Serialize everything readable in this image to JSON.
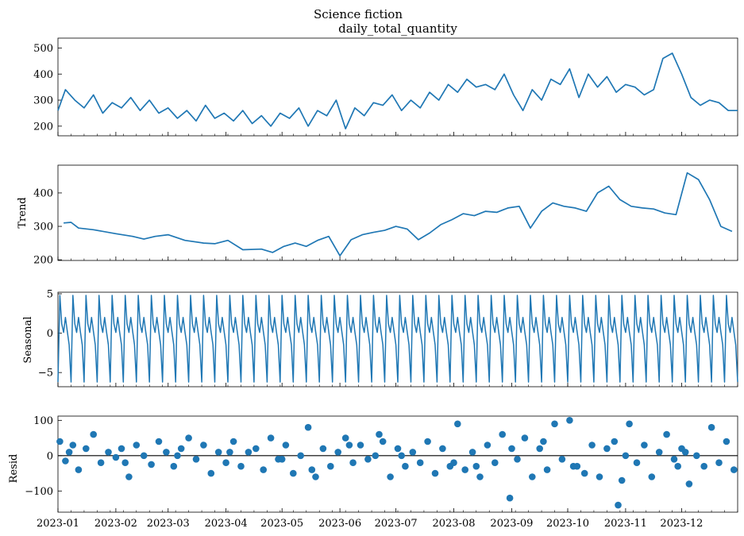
{
  "figure": {
    "suptitle": "Science fiction"
  },
  "chart_data": [
    {
      "type": "line",
      "title": "daily_total_quantity",
      "ylabel": "",
      "x_range": [
        "2023-01-01",
        "2023-12-31"
      ],
      "ylim": [
        163,
        538
      ],
      "yticks": [
        200,
        300,
        400,
        500
      ],
      "color": "#1f77b4",
      "series": [
        {
          "x": [
            "2023-01-01",
            "2023-01-05",
            "2023-01-10",
            "2023-01-15",
            "2023-01-20",
            "2023-01-25",
            "2023-01-30",
            "2023-02-04",
            "2023-02-09",
            "2023-02-14",
            "2023-02-19",
            "2023-02-24",
            "2023-03-01",
            "2023-03-06",
            "2023-03-11",
            "2023-03-16",
            "2023-03-21",
            "2023-03-26",
            "2023-03-31",
            "2023-04-05",
            "2023-04-10",
            "2023-04-15",
            "2023-04-20",
            "2023-04-25",
            "2023-04-30",
            "2023-05-05",
            "2023-05-10",
            "2023-05-15",
            "2023-05-20",
            "2023-05-25",
            "2023-05-30",
            "2023-06-04",
            "2023-06-09",
            "2023-06-14",
            "2023-06-19",
            "2023-06-24",
            "2023-06-29",
            "2023-07-04",
            "2023-07-09",
            "2023-07-14",
            "2023-07-19",
            "2023-07-24",
            "2023-07-29",
            "2023-08-03",
            "2023-08-08",
            "2023-08-13",
            "2023-08-18",
            "2023-08-23",
            "2023-08-28",
            "2023-09-02",
            "2023-09-07",
            "2023-09-12",
            "2023-09-17",
            "2023-09-22",
            "2023-09-27",
            "2023-10-02",
            "2023-10-07",
            "2023-10-12",
            "2023-10-17",
            "2023-10-22",
            "2023-10-27",
            "2023-11-01",
            "2023-11-06",
            "2023-11-11",
            "2023-11-16",
            "2023-11-21",
            "2023-11-26",
            "2023-12-01",
            "2023-12-06",
            "2023-12-11",
            "2023-12-16",
            "2023-12-21",
            "2023-12-26",
            "2023-12-31"
          ],
          "y": [
            260,
            340,
            300,
            270,
            320,
            250,
            290,
            270,
            310,
            260,
            300,
            250,
            270,
            230,
            260,
            220,
            280,
            230,
            250,
            220,
            260,
            210,
            240,
            200,
            250,
            230,
            270,
            200,
            260,
            240,
            300,
            190,
            270,
            240,
            290,
            280,
            320,
            260,
            300,
            270,
            330,
            300,
            360,
            330,
            380,
            350,
            360,
            340,
            400,
            320,
            260,
            340,
            300,
            380,
            360,
            420,
            310,
            400,
            350,
            390,
            330,
            360,
            350,
            320,
            340,
            460,
            480,
            400,
            310,
            280,
            300,
            290,
            260,
            260
          ]
        }
      ]
    },
    {
      "type": "line",
      "title": "",
      "ylabel": "Trend",
      "x_range": [
        "2023-01-01",
        "2023-12-31"
      ],
      "ylim": [
        198,
        483
      ],
      "yticks": [
        200,
        300,
        400
      ],
      "color": "#1f77b4",
      "series": [
        {
          "x": [
            "2023-01-04",
            "2023-01-08",
            "2023-01-12",
            "2023-01-20",
            "2023-02-01",
            "2023-02-10",
            "2023-02-16",
            "2023-02-22",
            "2023-03-01",
            "2023-03-10",
            "2023-03-20",
            "2023-03-26",
            "2023-04-02",
            "2023-04-10",
            "2023-04-20",
            "2023-04-26",
            "2023-05-02",
            "2023-05-08",
            "2023-05-14",
            "2023-05-20",
            "2023-05-26",
            "2023-06-01",
            "2023-06-07",
            "2023-06-13",
            "2023-06-19",
            "2023-06-25",
            "2023-07-01",
            "2023-07-07",
            "2023-07-13",
            "2023-07-19",
            "2023-07-25",
            "2023-07-31",
            "2023-08-06",
            "2023-08-12",
            "2023-08-18",
            "2023-08-24",
            "2023-08-30",
            "2023-09-05",
            "2023-09-11",
            "2023-09-17",
            "2023-09-23",
            "2023-09-29",
            "2023-10-05",
            "2023-10-11",
            "2023-10-17",
            "2023-10-23",
            "2023-10-29",
            "2023-11-04",
            "2023-11-10",
            "2023-11-16",
            "2023-11-22",
            "2023-11-28",
            "2023-12-04",
            "2023-12-10",
            "2023-12-16",
            "2023-12-22",
            "2023-12-28"
          ],
          "y": [
            310,
            312,
            295,
            290,
            278,
            270,
            262,
            270,
            275,
            258,
            250,
            248,
            258,
            230,
            232,
            222,
            240,
            250,
            240,
            258,
            270,
            212,
            260,
            275,
            282,
            288,
            300,
            292,
            260,
            280,
            305,
            320,
            338,
            332,
            345,
            342,
            355,
            360,
            295,
            345,
            370,
            360,
            355,
            345,
            400,
            420,
            380,
            360,
            355,
            352,
            340,
            335,
            460,
            440,
            380,
            300,
            285
          ]
        }
      ]
    },
    {
      "type": "line",
      "title": "",
      "ylabel": "Seasonal",
      "x_range": [
        "2023-01-01",
        "2023-12-31"
      ],
      "ylim": [
        -6.8,
        5.2
      ],
      "yticks": [
        -5,
        0,
        5
      ],
      "color": "#1f77b4",
      "period_days": 7,
      "pattern": [
        -6.2,
        4.8,
        1.2,
        0.1,
        2.0,
        0.2,
        -1.5
      ],
      "series": []
    },
    {
      "type": "scatter",
      "title": "",
      "ylabel": "Resid",
      "x_range": [
        "2023-01-01",
        "2023-12-31"
      ],
      "ylim": [
        -160,
        112
      ],
      "yticks": [
        -100,
        0,
        100
      ],
      "color": "#1f77b4",
      "zero_line": true,
      "series": [
        {
          "x": [
            "2023-01-02",
            "2023-01-05",
            "2023-01-09",
            "2023-01-12",
            "2023-01-16",
            "2023-01-20",
            "2023-01-24",
            "2023-01-28",
            "2023-02-01",
            "2023-02-04",
            "2023-02-08",
            "2023-02-12",
            "2023-02-16",
            "2023-02-20",
            "2023-02-24",
            "2023-02-28",
            "2023-03-04",
            "2023-03-08",
            "2023-03-12",
            "2023-03-16",
            "2023-03-20",
            "2023-03-24",
            "2023-03-28",
            "2023-04-01",
            "2023-04-05",
            "2023-04-09",
            "2023-04-13",
            "2023-04-17",
            "2023-04-21",
            "2023-04-25",
            "2023-04-29",
            "2023-05-03",
            "2023-05-07",
            "2023-05-11",
            "2023-05-15",
            "2023-05-19",
            "2023-05-23",
            "2023-05-27",
            "2023-05-31",
            "2023-06-04",
            "2023-06-08",
            "2023-06-12",
            "2023-06-16",
            "2023-06-20",
            "2023-06-24",
            "2023-06-28",
            "2023-07-02",
            "2023-07-06",
            "2023-07-10",
            "2023-07-14",
            "2023-07-18",
            "2023-07-22",
            "2023-07-26",
            "2023-07-30",
            "2023-08-03",
            "2023-08-07",
            "2023-08-11",
            "2023-08-15",
            "2023-08-19",
            "2023-08-23",
            "2023-08-27",
            "2023-08-31",
            "2023-09-04",
            "2023-09-08",
            "2023-09-12",
            "2023-09-16",
            "2023-09-20",
            "2023-09-24",
            "2023-09-28",
            "2023-10-02",
            "2023-10-06",
            "2023-10-10",
            "2023-10-14",
            "2023-10-18",
            "2023-10-22",
            "2023-10-26",
            "2023-10-30",
            "2023-11-03",
            "2023-11-07",
            "2023-11-11",
            "2023-11-15",
            "2023-11-19",
            "2023-11-23",
            "2023-11-27",
            "2023-12-01",
            "2023-12-05",
            "2023-12-09",
            "2023-12-13",
            "2023-12-17",
            "2023-12-21",
            "2023-12-25",
            "2023-12-29",
            "2023-01-07",
            "2023-02-06",
            "2023-03-06",
            "2023-04-03",
            "2023-05-01",
            "2023-06-06",
            "2023-07-04",
            "2023-08-01",
            "2023-09-01",
            "2023-10-04",
            "2023-11-01",
            "2023-12-03",
            "2023-05-17",
            "2023-06-22",
            "2023-08-13",
            "2023-09-18",
            "2023-10-28",
            "2023-11-29"
          ],
          "y": [
            40,
            -15,
            30,
            -40,
            20,
            60,
            -20,
            10,
            -5,
            20,
            -60,
            30,
            0,
            -25,
            40,
            10,
            -30,
            20,
            50,
            -10,
            30,
            -50,
            10,
            -20,
            40,
            -30,
            10,
            20,
            -40,
            50,
            -10,
            30,
            -50,
            0,
            80,
            -60,
            20,
            -30,
            10,
            50,
            -20,
            30,
            -10,
            0,
            40,
            -60,
            20,
            -30,
            10,
            -20,
            40,
            -50,
            20,
            -30,
            90,
            -40,
            10,
            -60,
            30,
            -20,
            60,
            -120,
            -10,
            50,
            -60,
            20,
            -40,
            90,
            -10,
            100,
            -30,
            -50,
            30,
            -60,
            20,
            40,
            -70,
            90,
            -20,
            30,
            -60,
            10,
            60,
            -10,
            20,
            -80,
            0,
            -30,
            80,
            -20,
            40,
            -40,
            10,
            -20,
            0,
            10,
            -10,
            30,
            0,
            -20,
            20,
            -30,
            0,
            10,
            -40,
            60,
            -30,
            40,
            -140,
            -30
          ]
        }
      ]
    }
  ],
  "xaxis": {
    "start": "2023-01-01",
    "end": "2023-12-31",
    "tick_dates": [
      "2023-01-01",
      "2023-02-01",
      "2023-03-01",
      "2023-04-01",
      "2023-05-01",
      "2023-06-01",
      "2023-07-01",
      "2023-08-01",
      "2023-09-01",
      "2023-10-01",
      "2023-11-01",
      "2023-12-01"
    ],
    "tick_labels": [
      "2023-01",
      "2023-02",
      "2023-03",
      "2023-04",
      "2023-05",
      "2023-06",
      "2023-07",
      "2023-08",
      "2023-09",
      "2023-10",
      "2023-11",
      "2023-12"
    ]
  }
}
